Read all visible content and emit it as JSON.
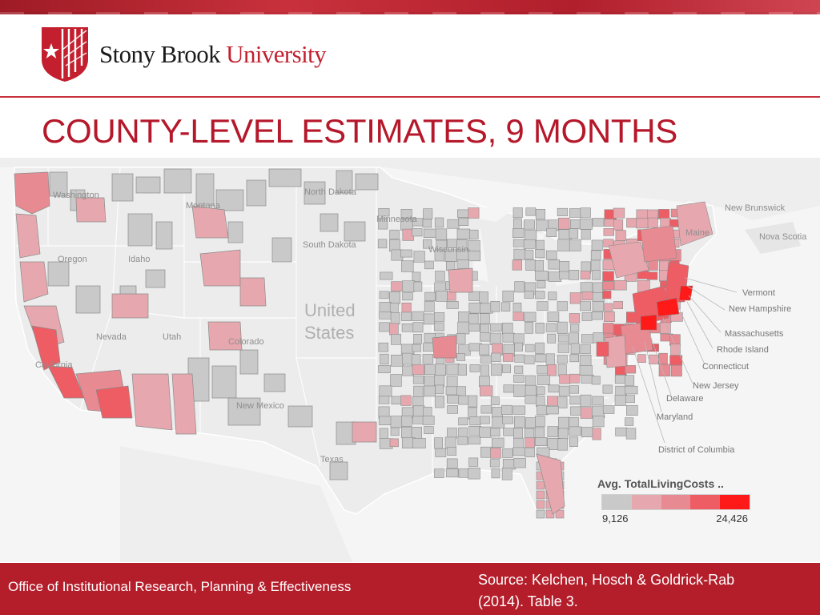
{
  "header": {
    "logo": {
      "wordmark_a": "Stony Brook",
      "wordmark_b": "University",
      "icon": "stony-brook-star-shield-icon"
    },
    "title": "COUNTY-LEVEL ESTIMATES, 9 MONTHS"
  },
  "map": {
    "region": "Contiguous United States",
    "measure": "Avg. TotalLivingCosts (9 months) by county",
    "country_label": [
      "United",
      "States"
    ],
    "state_labels": {
      "montana": "Montana",
      "north_dakota": "North Dakota",
      "south_dakota": "South Dakota",
      "idaho": "Idaho",
      "oregon": "Oregon",
      "nevada": "Nevada",
      "utah": "Utah",
      "colorado": "Colorado",
      "new_mexico": "New Mexico",
      "texas": "Texas",
      "minnesota": "Minnesota",
      "wisconsin": "Wisconsin",
      "washington": "Washington",
      "california": "California",
      "maine": "Maine"
    },
    "region_labels": {
      "new_brunswick": "New Brunswick",
      "nova_scotia": "Nova Scotia"
    },
    "callouts": [
      "Vermont",
      "New Hampshire",
      "Massachusetts",
      "Rhode Island",
      "Connecticut",
      "New Jersey",
      "Delaware",
      "Maryland",
      "District of Columbia"
    ],
    "colors": {
      "land": "#ececec",
      "border": "#ffffff",
      "county_outline": "#8a8a8a",
      "scale": [
        "#c9c9c9",
        "#e6a8ae",
        "#e88a92",
        "#ee5c64",
        "#ff1a1a"
      ]
    }
  },
  "legend": {
    "title": "Avg. TotalLivingCosts ..",
    "min": "9,126",
    "max": "24,426"
  },
  "footer": {
    "office": "Office of Institutional Research, Planning & Effectiveness",
    "source_line1": "Source: Kelchen, Hosch & Goldrick-Rab",
    "source_line2": "(2014). Table 3."
  }
}
